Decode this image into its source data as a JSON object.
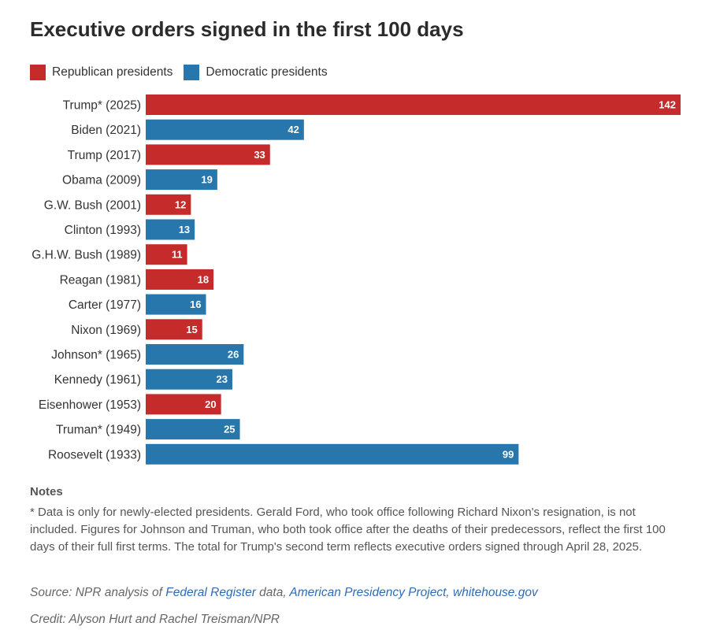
{
  "title": "Executive orders signed in the first 100 days",
  "legend": {
    "republican": {
      "label": "Republican presidents",
      "color": "#c62b2b"
    },
    "democratic": {
      "label": "Democratic presidents",
      "color": "#2777ad"
    }
  },
  "chart_data": {
    "type": "bar",
    "orientation": "horizontal",
    "title": "Executive orders signed in the first 100 days",
    "xlim": [
      0,
      142
    ],
    "grid": false,
    "legend_position": "top-left",
    "categories": [
      "Trump* (2025)",
      "Biden (2021)",
      "Trump (2017)",
      "Obama (2009)",
      "G.W. Bush (2001)",
      "Clinton (1993)",
      "G.H.W. Bush (1989)",
      "Reagan (1981)",
      "Carter (1977)",
      "Nixon (1969)",
      "Johnson* (1965)",
      "Kennedy (1961)",
      "Eisenhower (1953)",
      "Truman* (1949)",
      "Roosevelt (1933)"
    ],
    "values": [
      142,
      42,
      33,
      19,
      12,
      13,
      11,
      18,
      16,
      15,
      26,
      23,
      20,
      25,
      99
    ],
    "party": [
      "republican",
      "democratic",
      "republican",
      "democratic",
      "republican",
      "democratic",
      "republican",
      "republican",
      "democratic",
      "republican",
      "democratic",
      "democratic",
      "republican",
      "democratic",
      "democratic"
    ]
  },
  "notes": {
    "heading": "Notes",
    "text": "* Data is only for newly-elected presidents. Gerald Ford, who took office following Richard Nixon's resignation, is not included. Figures for Johnson and Truman, who both took office after the deaths of their predecessors, reflect the first 100 days of their full first terms. The total for Trump's second term reflects executive orders signed through April 28, 2025."
  },
  "source": {
    "prefix": "Source: NPR analysis of ",
    "link1": "Federal Register",
    "mid1": " data, ",
    "link2": "American Presidency Project",
    "mid2": ", ",
    "link3": "whitehouse.gov"
  },
  "credit": "Credit: Alyson Hurt and Rachel Treisman/NPR"
}
